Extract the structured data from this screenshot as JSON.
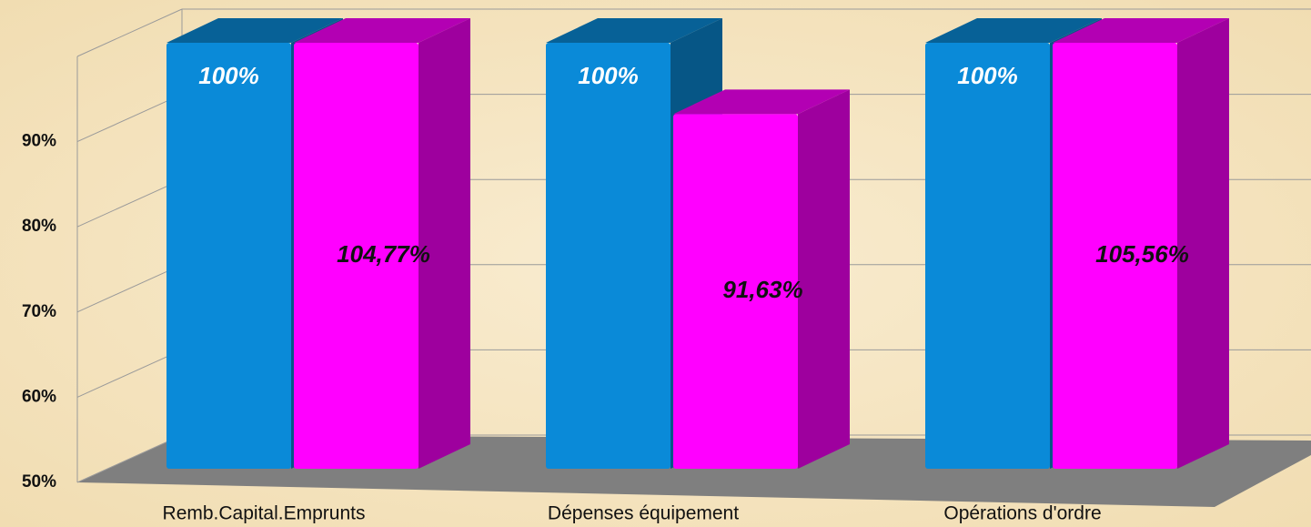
{
  "chart_data": {
    "type": "bar3d",
    "categories": [
      "Remb.Capital.Emprunts",
      "Dépenses équipement",
      "Opérations d'ordre"
    ],
    "series": [
      {
        "color": "#0a8ad8",
        "values": [
          100,
          100,
          100
        ],
        "value_labels": [
          "100%",
          "100%",
          "100%"
        ]
      },
      {
        "color": "#ff00ff",
        "values": [
          104.77,
          91.63,
          105.56
        ],
        "value_labels": [
          "104,77%",
          "91,63%",
          "105,56%"
        ]
      }
    ],
    "ylim": [
      50,
      100
    ],
    "yticks": [
      {
        "value": 50,
        "label": "50%"
      },
      {
        "value": 60,
        "label": "60%"
      },
      {
        "value": 70,
        "label": "70%"
      },
      {
        "value": 80,
        "label": "80%"
      },
      {
        "value": 90,
        "label": "90%"
      }
    ],
    "grid": true
  }
}
